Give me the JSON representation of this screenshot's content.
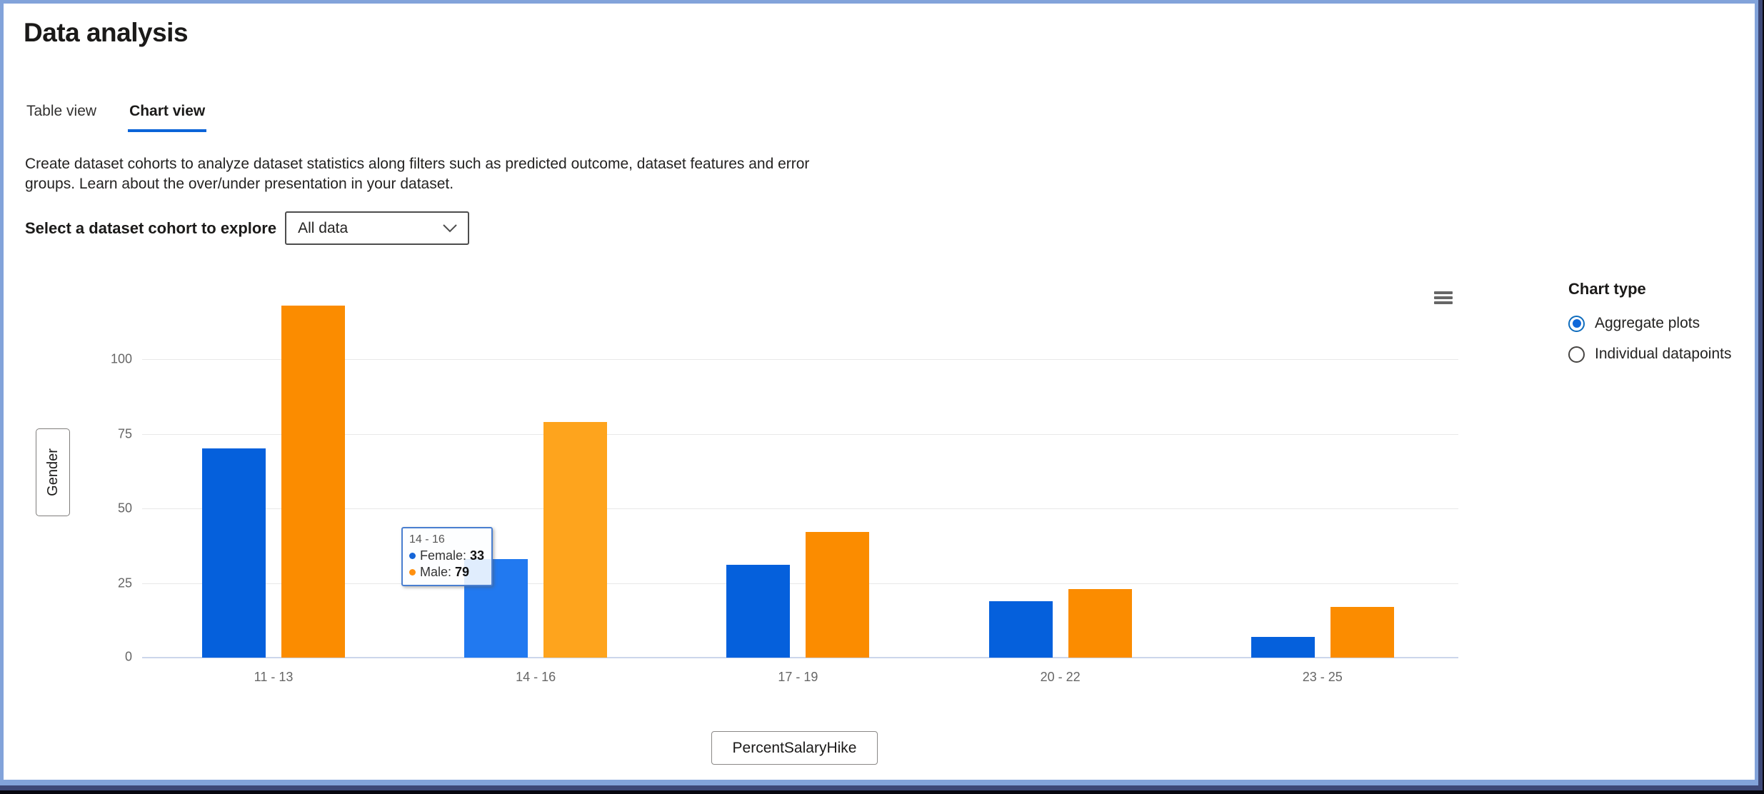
{
  "header": {
    "title": "Data analysis"
  },
  "tabs": [
    {
      "label": "Table view",
      "active": false
    },
    {
      "label": "Chart view",
      "active": true
    }
  ],
  "description": "Create dataset cohorts to analyze dataset statistics along filters such as predicted outcome, dataset features and error groups. Learn about the over/under presentation in your dataset.",
  "cohort": {
    "label": "Select a dataset cohort to explore",
    "value": "All data"
  },
  "icons": {
    "dropdown_chevron": "chevron-down-icon",
    "chart_menu": "hamburger-menu-icon"
  },
  "colors": {
    "accent_blue": "#0b64d8",
    "female_bar": "#0560dc",
    "female_bar_hover": "#2179f0",
    "male_bar": "#fb8c00",
    "male_bar_hover": "#fea41d",
    "axis_line": "#ccd6eb",
    "gridline": "#e8e8e8",
    "tick_text": "#666666"
  },
  "chart_type": {
    "title": "Chart type",
    "options": [
      {
        "label": "Aggregate plots",
        "selected": true
      },
      {
        "label": "Individual datapoints",
        "selected": false
      }
    ]
  },
  "chart_data": {
    "type": "bar",
    "title": "",
    "categories": [
      "11 - 13",
      "14 - 16",
      "17 - 19",
      "20 - 22",
      "23 - 25"
    ],
    "series": [
      {
        "name": "Female",
        "color": "#0560dc",
        "hover_color": "#2179f0",
        "values": [
          70,
          33,
          31,
          19,
          7
        ]
      },
      {
        "name": "Male",
        "color": "#fb8c00",
        "hover_color": "#fea41d",
        "values": [
          118,
          79,
          42,
          23,
          17
        ]
      }
    ],
    "y_ticks": [
      0,
      25,
      50,
      75,
      100
    ],
    "ylim": [
      0,
      125
    ],
    "grid": true,
    "legend_position": "none",
    "xlabel": "PercentSalaryHike",
    "ylabel": "Gender",
    "x_axis_button": "PercentSalaryHike",
    "y_axis_button": "Gender",
    "hovered_category_index": 1,
    "tooltip": {
      "title": "14 - 16",
      "rows": [
        {
          "series": "Female",
          "label": "Female:",
          "value": "33",
          "dot_color": "#1565d8"
        },
        {
          "series": "Male",
          "label": "Male:",
          "value": "79",
          "dot_color": "#ff9010"
        }
      ]
    }
  }
}
